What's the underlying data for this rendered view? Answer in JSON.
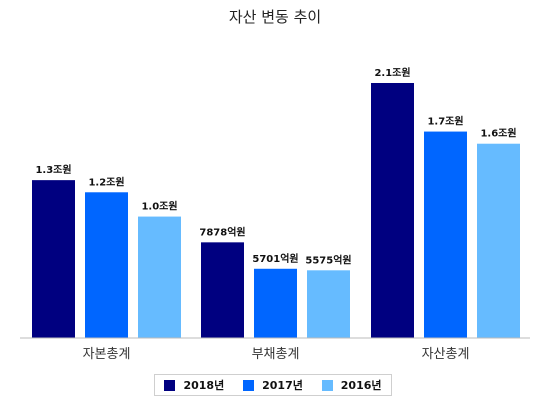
{
  "chart_data": {
    "type": "bar",
    "title": "자산 변동 추이",
    "categories": [
      "자본총계",
      "부채총계",
      "자산총계"
    ],
    "series": [
      {
        "name": "2018년",
        "color": "#000080",
        "values": [
          13000,
          7878,
          21000
        ],
        "labels": [
          "1.3조원",
          "7878억원",
          "2.1조원"
        ]
      },
      {
        "name": "2017년",
        "color": "#0066FF",
        "values": [
          12000,
          5701,
          17000
        ],
        "labels": [
          "1.2조원",
          "5701억원",
          "1.7조원"
        ]
      },
      {
        "name": "2016년",
        "color": "#66BBFF",
        "values": [
          10000,
          5575,
          16000
        ],
        "labels": [
          "1.0조원",
          "5575억원",
          "1.6조원"
        ]
      }
    ],
    "value_unit": "억원",
    "ylim": [
      0,
      25000
    ],
    "grid": false,
    "legend_position": "bottom"
  }
}
